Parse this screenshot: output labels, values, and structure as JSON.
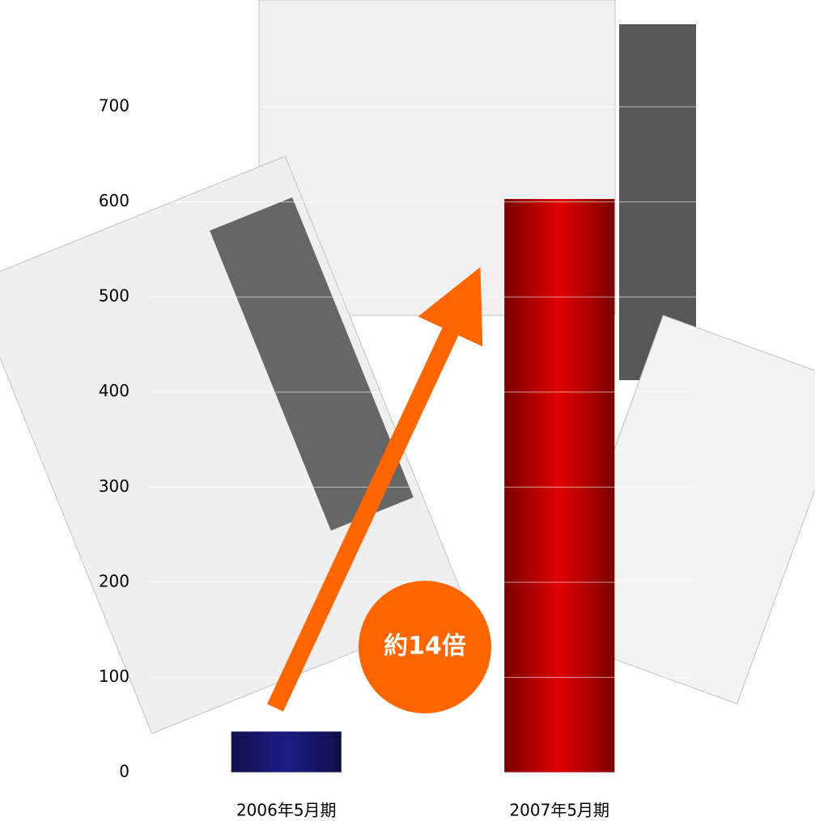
{
  "chart_data": {
    "type": "bar",
    "categories": [
      "2006年5月期",
      "2007年5月期"
    ],
    "values": [
      43,
      603
    ],
    "colors": [
      "#1c1c86",
      "#e00000"
    ],
    "ylim": [
      0,
      700
    ],
    "yticks": [
      0,
      100,
      200,
      300,
      400,
      500,
      600,
      700
    ],
    "grid": true,
    "annotation": "約14倍"
  }
}
